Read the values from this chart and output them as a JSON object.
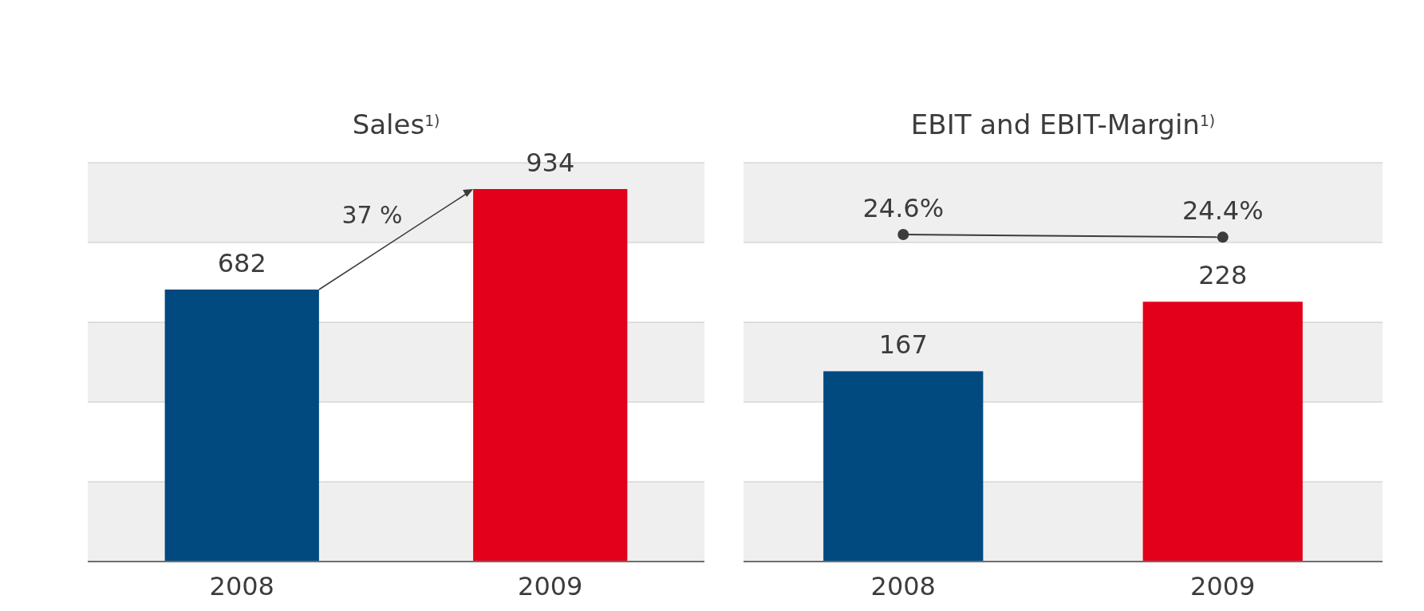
{
  "chart_data": [
    {
      "type": "bar",
      "title": "Sales$^{1)}$",
      "categories": [
        "2008",
        "2009"
      ],
      "series": [
        {
          "values": [
            682,
            934
          ],
          "colors": [
            "#004a80",
            "#e2001a"
          ]
        }
      ],
      "ylim": [
        0,
        1000
      ],
      "yticks": [
        {
          "value": 0,
          "label": null
        },
        {
          "value": 200,
          "label": null
        },
        {
          "value": 400,
          "label": null
        },
        {
          "value": 600,
          "label": null
        },
        {
          "value": 800,
          "label": null
        },
        {
          "value": 1000,
          "label": null
        }
      ],
      "tick_labels": "x",
      "grid": "y",
      "data_labels": true,
      "annotations": [
        "37 %"
      ]
    },
    {
      "type": "bar",
      "title": "EBIT and EBIT-Margin$^{1)}$",
      "categories": [
        "2008",
        "2009"
      ],
      "series": [
        {
          "values": [
            167,
            228
          ],
          "colors": [
            "#004a80",
            "#e2001a"
          ]
        },
        {
          "type": "line",
          "axis": "y2",
          "color": "#3c3c3c",
          "values": [
            24.6,
            24.4
          ],
          "value_labels": [
            "24.6%",
            "24.4%"
          ]
        }
      ],
      "ylim": [
        0,
        350
      ],
      "yticks": [
        {
          "value": 0,
          "label": null
        },
        {
          "value": 70,
          "label": null
        },
        {
          "value": 140,
          "label": null
        },
        {
          "value": 210,
          "label": null
        },
        {
          "value": 280,
          "label": null
        },
        {
          "value": 350,
          "label": null
        }
      ],
      "y2lim": [
        0,
        30
      ],
      "tick_labels": "x",
      "grid": "y",
      "data_labels": true,
      "marker": "circle",
      "line_style": "solid"
    }
  ]
}
